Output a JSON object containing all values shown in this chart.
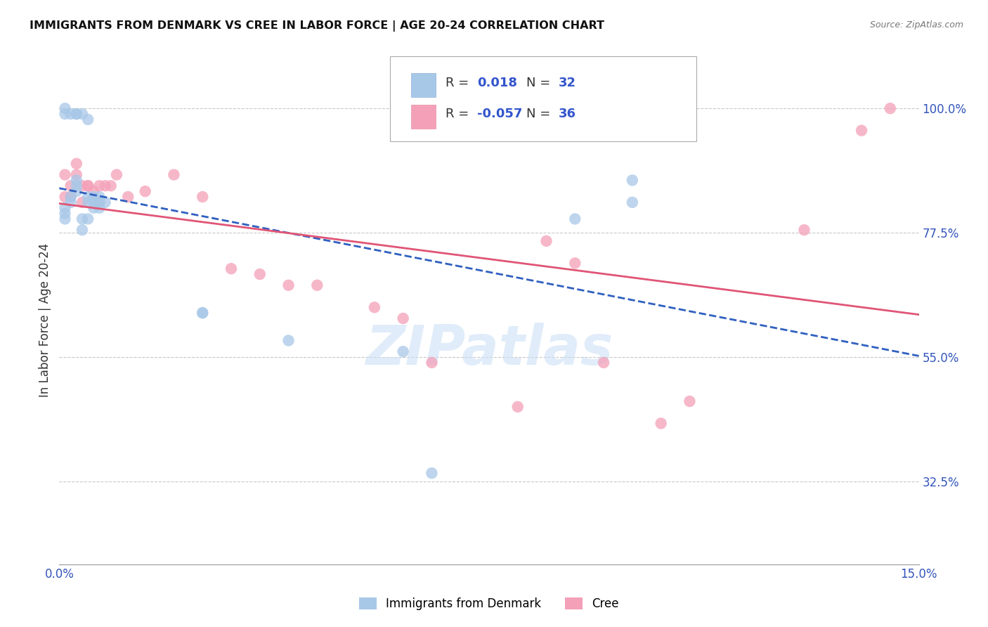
{
  "title": "IMMIGRANTS FROM DENMARK VS CREE IN LABOR FORCE | AGE 20-24 CORRELATION CHART",
  "source": "Source: ZipAtlas.com",
  "ylabel": "In Labor Force | Age 20-24",
  "xmin": 0.0,
  "xmax": 0.15,
  "ymin": 0.175,
  "ymax": 1.06,
  "xtick_positions": [
    0.0,
    0.15
  ],
  "xtick_labels": [
    "0.0%",
    "15.0%"
  ],
  "ytick_values": [
    0.325,
    0.55,
    0.775,
    1.0
  ],
  "ytick_labels": [
    "32.5%",
    "55.0%",
    "77.5%",
    "100.0%"
  ],
  "denmark_color": "#a8c8e8",
  "cree_color": "#f4a0b8",
  "trend_denmark_color": "#3060c0",
  "trend_cree_color": "#e05575",
  "watermark_color": "#cce0f5",
  "background_color": "#ffffff",
  "grid_color": "#c8c8c8",
  "denmark_x": [
    0.001,
    0.001,
    0.001,
    0.002,
    0.002,
    0.003,
    0.003,
    0.003,
    0.004,
    0.004,
    0.005,
    0.005,
    0.005,
    0.006,
    0.006,
    0.006,
    0.007,
    0.007,
    0.007,
    0.008,
    0.025,
    0.025,
    0.04,
    0.06,
    0.065,
    0.09,
    0.1
  ],
  "denmark_y": [
    0.82,
    0.81,
    0.8,
    0.84,
    0.83,
    0.87,
    0.86,
    0.85,
    0.8,
    0.78,
    0.84,
    0.83,
    0.8,
    0.84,
    0.83,
    0.82,
    0.84,
    0.83,
    0.82,
    0.83,
    0.63,
    0.63,
    0.58,
    0.56,
    0.34,
    0.8,
    0.83
  ],
  "denmark_x2": [
    0.001,
    0.001,
    0.002,
    0.003,
    0.003,
    0.004,
    0.005,
    0.1
  ],
  "denmark_y2": [
    1.0,
    0.99,
    0.99,
    0.99,
    0.99,
    0.99,
    0.98,
    0.87
  ],
  "cree_x": [
    0.001,
    0.001,
    0.002,
    0.002,
    0.003,
    0.003,
    0.004,
    0.004,
    0.005,
    0.005,
    0.006,
    0.007,
    0.007,
    0.008,
    0.009,
    0.01,
    0.012,
    0.015,
    0.02,
    0.025,
    0.03,
    0.035,
    0.04,
    0.045,
    0.055,
    0.06,
    0.065,
    0.08,
    0.085,
    0.09,
    0.095,
    0.105,
    0.11,
    0.13,
    0.14,
    0.145
  ],
  "cree_y": [
    0.88,
    0.84,
    0.86,
    0.84,
    0.9,
    0.88,
    0.86,
    0.83,
    0.86,
    0.86,
    0.85,
    0.86,
    0.83,
    0.86,
    0.86,
    0.88,
    0.84,
    0.85,
    0.88,
    0.84,
    0.71,
    0.7,
    0.68,
    0.68,
    0.64,
    0.62,
    0.54,
    0.46,
    0.76,
    0.72,
    0.54,
    0.43,
    0.47,
    0.78,
    0.96,
    1.0
  ]
}
